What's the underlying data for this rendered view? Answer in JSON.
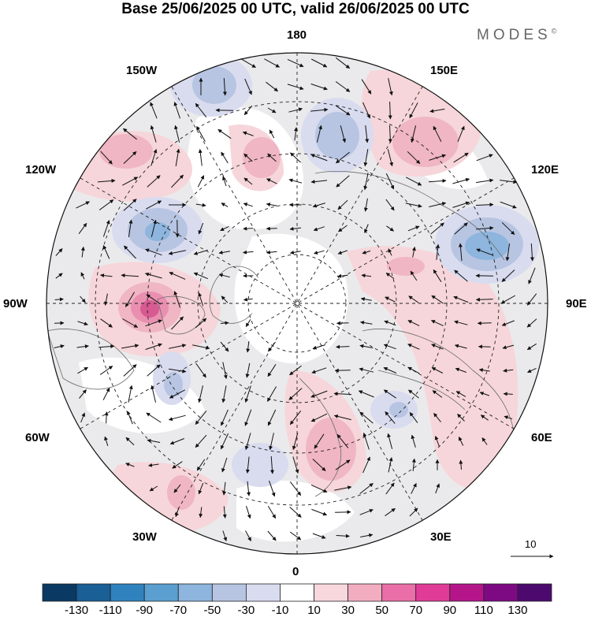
{
  "title": "Base 25/06/2025 00 UTC, valid 26/06/2025 00 UTC",
  "brand": "MODES",
  "brand_mark": "©",
  "longitude_labels": {
    "top": "180",
    "upper_left": "150W",
    "upper_right": "150E",
    "left_upper": "120W",
    "right_upper": "120E",
    "left": "90W",
    "right": "90E",
    "left_lower": "60W",
    "right_lower": "60E",
    "lower_left": "30W",
    "lower_right": "30E",
    "bottom": "0"
  },
  "vector_reference": "10",
  "colorbar": {
    "colors": [
      "#0a3a63",
      "#1a5f96",
      "#2f82be",
      "#5a9fd0",
      "#8db5dd",
      "#b7c5e2",
      "#d9dcef",
      "#ffffff",
      "#f8d8dc",
      "#f2adc1",
      "#ea6fa8",
      "#e03c97",
      "#b4168a",
      "#7e0a83",
      "#4d0a6e"
    ],
    "tick_labels": [
      "-130",
      "-110",
      "-90",
      "-70",
      "-50",
      "-30",
      "-10",
      "10",
      "30",
      "50",
      "70",
      "90",
      "110",
      "130"
    ]
  },
  "map": {
    "projection": "north polar stereographic",
    "field": "height anomaly with wind vectors",
    "colors": {
      "background_field": "#e9e9ec",
      "positive": "#f4c9cf",
      "positive_strong": "#e99ab0",
      "positive_core": "#d75a92",
      "negative": "#d6d8ea",
      "negative_strong": "#aab6d9",
      "negative_core": "#6d8fc7",
      "land_outline": "#6b6b6b",
      "grid": "#222222"
    }
  }
}
